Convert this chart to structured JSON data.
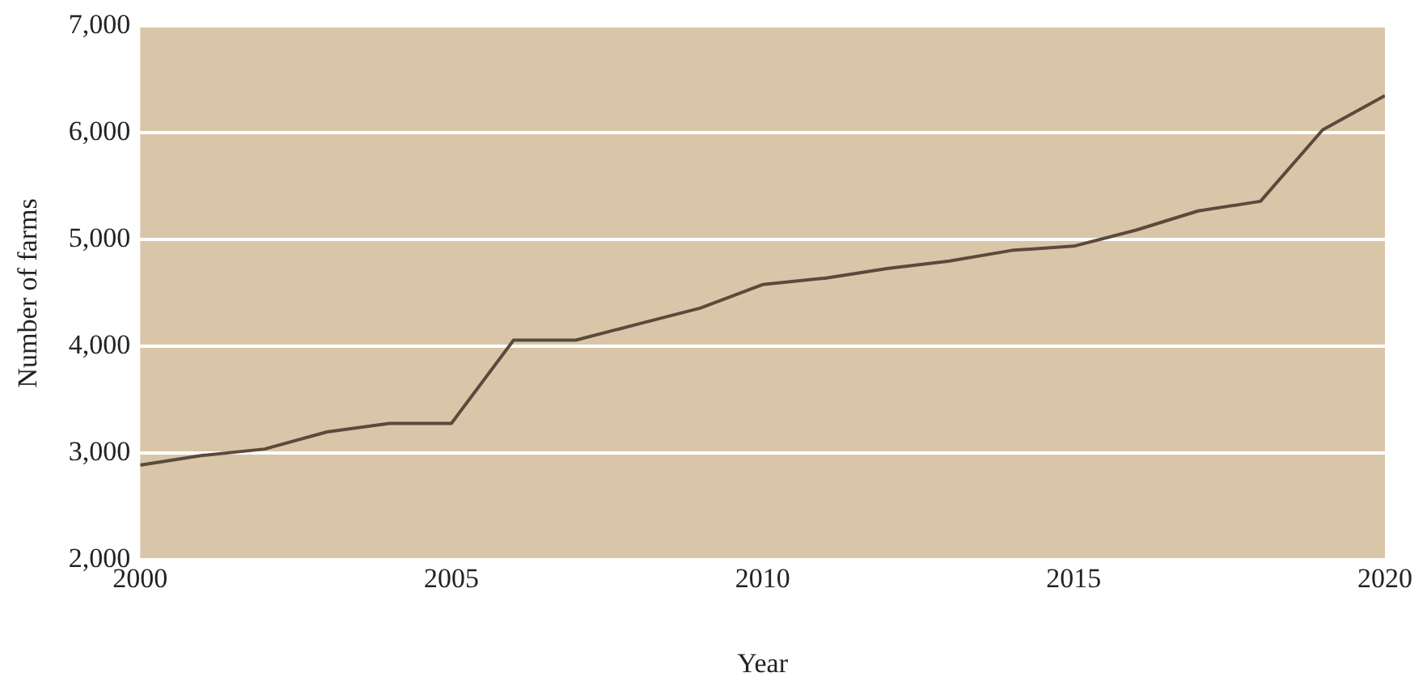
{
  "chart_data": {
    "type": "line",
    "xlabel": "Year",
    "ylabel": "Number of farms",
    "x": [
      2000,
      2001,
      2002,
      2003,
      2004,
      2005,
      2006,
      2007,
      2008,
      2009,
      2010,
      2011,
      2012,
      2013,
      2014,
      2015,
      2016,
      2017,
      2018,
      2019,
      2020
    ],
    "series": [
      {
        "color": "#5b4a3c",
        "values": [
          2890,
          2980,
          3040,
          3200,
          3280,
          3280,
          4060,
          4060,
          4210,
          4360,
          4580,
          4640,
          4730,
          4800,
          4900,
          4940,
          5090,
          5270,
          5360,
          6030,
          6350
        ]
      }
    ],
    "xlim": [
      2000,
      2020
    ],
    "xticks": [
      2000,
      2005,
      2010,
      2015,
      2020
    ],
    "ylim": [
      2000,
      7000
    ],
    "yticks": [
      {
        "value": 2000,
        "label": "2,000"
      },
      {
        "value": 3000,
        "label": "3,000"
      },
      {
        "value": 4000,
        "label": "4,000"
      },
      {
        "value": 5000,
        "label": "5,000"
      },
      {
        "value": 6000,
        "label": "6,000"
      },
      {
        "value": 7000,
        "label": "7,000"
      }
    ],
    "grid": "y",
    "legend": false,
    "marker": "none",
    "line_style": "solid"
  }
}
